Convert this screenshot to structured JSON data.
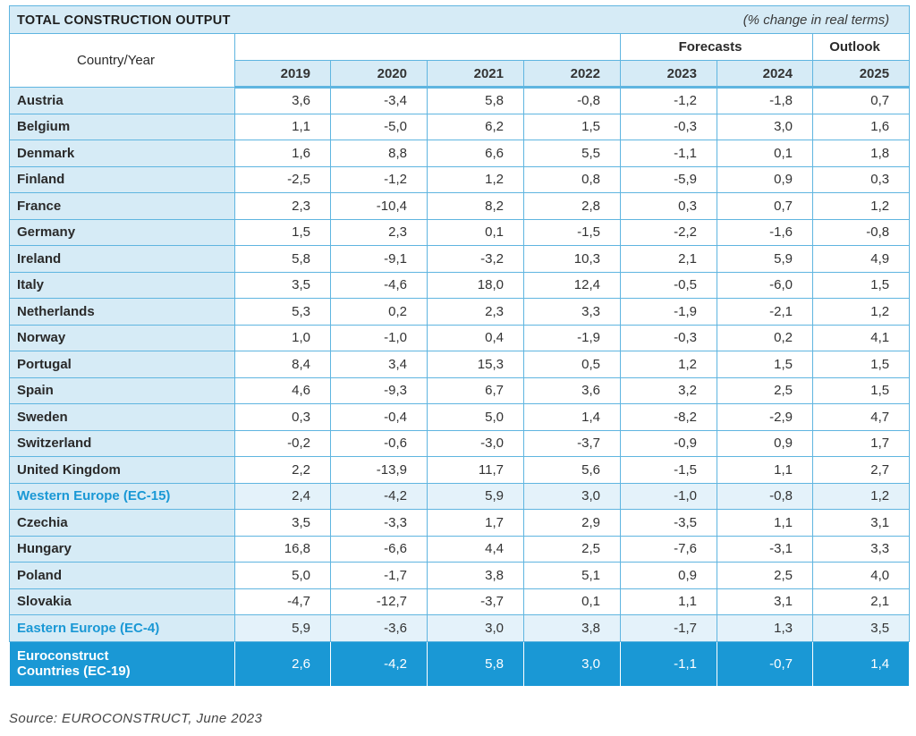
{
  "title": "TOTAL CONSTRUCTION OUTPUT",
  "unit_note": "(% change in real terms)",
  "corner_label": "Country/Year",
  "group_forecasts": "Forecasts",
  "group_outlook": "Outlook",
  "years": [
    "2019",
    "2020",
    "2021",
    "2022",
    "2023",
    "2024",
    "2025"
  ],
  "rows": [
    {
      "country": "Austria",
      "values": [
        "3,6",
        "-3,4",
        "5,8",
        "-0,8",
        "-1,2",
        "-1,8",
        "0,7"
      ]
    },
    {
      "country": "Belgium",
      "values": [
        "1,1",
        "-5,0",
        "6,2",
        "1,5",
        "-0,3",
        "3,0",
        "1,6"
      ]
    },
    {
      "country": "Denmark",
      "values": [
        "1,6",
        "8,8",
        "6,6",
        "5,5",
        "-1,1",
        "0,1",
        "1,8"
      ]
    },
    {
      "country": "Finland",
      "values": [
        "-2,5",
        "-1,2",
        "1,2",
        "0,8",
        "-5,9",
        "0,9",
        "0,3"
      ]
    },
    {
      "country": "France",
      "values": [
        "2,3",
        "-10,4",
        "8,2",
        "2,8",
        "0,3",
        "0,7",
        "1,2"
      ]
    },
    {
      "country": "Germany",
      "values": [
        "1,5",
        "2,3",
        "0,1",
        "-1,5",
        "-2,2",
        "-1,6",
        "-0,8"
      ]
    },
    {
      "country": "Ireland",
      "values": [
        "5,8",
        "-9,1",
        "-3,2",
        "10,3",
        "2,1",
        "5,9",
        "4,9"
      ]
    },
    {
      "country": "Italy",
      "values": [
        "3,5",
        "-4,6",
        "18,0",
        "12,4",
        "-0,5",
        "-6,0",
        "1,5"
      ]
    },
    {
      "country": "Netherlands",
      "values": [
        "5,3",
        "0,2",
        "2,3",
        "3,3",
        "-1,9",
        "-2,1",
        "1,2"
      ]
    },
    {
      "country": "Norway",
      "values": [
        "1,0",
        "-1,0",
        "0,4",
        "-1,9",
        "-0,3",
        "0,2",
        "4,1"
      ]
    },
    {
      "country": "Portugal",
      "values": [
        "8,4",
        "3,4",
        "15,3",
        "0,5",
        "1,2",
        "1,5",
        "1,5"
      ]
    },
    {
      "country": "Spain",
      "values": [
        "4,6",
        "-9,3",
        "6,7",
        "3,6",
        "3,2",
        "2,5",
        "1,5"
      ]
    },
    {
      "country": "Sweden",
      "values": [
        "0,3",
        "-0,4",
        "5,0",
        "1,4",
        "-8,2",
        "-2,9",
        "4,7"
      ]
    },
    {
      "country": "Switzerland",
      "values": [
        "-0,2",
        "-0,6",
        "-3,0",
        "-3,7",
        "-0,9",
        "0,9",
        "1,7"
      ]
    },
    {
      "country": "United Kingdom",
      "values": [
        "2,2",
        "-13,9",
        "11,7",
        "5,6",
        "-1,5",
        "1,1",
        "2,7"
      ]
    },
    {
      "country": "Western Europe (EC-15)",
      "values": [
        "2,4",
        "-4,2",
        "5,9",
        "3,0",
        "-1,0",
        "-0,8",
        "1,2"
      ],
      "subtotal": true
    },
    {
      "country": "Czechia",
      "values": [
        "3,5",
        "-3,3",
        "1,7",
        "2,9",
        "-3,5",
        "1,1",
        "3,1"
      ]
    },
    {
      "country": "Hungary",
      "values": [
        "16,8",
        "-6,6",
        "4,4",
        "2,5",
        "-7,6",
        "-3,1",
        "3,3"
      ]
    },
    {
      "country": "Poland",
      "values": [
        "5,0",
        "-1,7",
        "3,8",
        "5,1",
        "0,9",
        "2,5",
        "4,0"
      ]
    },
    {
      "country": "Slovakia",
      "values": [
        "-4,7",
        "-12,7",
        "-3,7",
        "0,1",
        "1,1",
        "3,1",
        "2,1"
      ]
    },
    {
      "country": "Eastern Europe (EC-4)",
      "values": [
        "5,9",
        "-3,6",
        "3,0",
        "3,8",
        "-1,7",
        "1,3",
        "3,5"
      ],
      "subtotal": true
    }
  ],
  "total": {
    "country_line1": "Euroconstruct",
    "country_line2": "Countries (EC-19)",
    "values": [
      "2,6",
      "-4,2",
      "5,8",
      "3,0",
      "-1,1",
      "-0,7",
      "1,4"
    ]
  },
  "source": "Source: EUROCONSTRUCT, June 2023",
  "colors": {
    "accent": "#1a98d5",
    "header_bg": "#d6ebf6",
    "border": "#5fb5e0"
  }
}
